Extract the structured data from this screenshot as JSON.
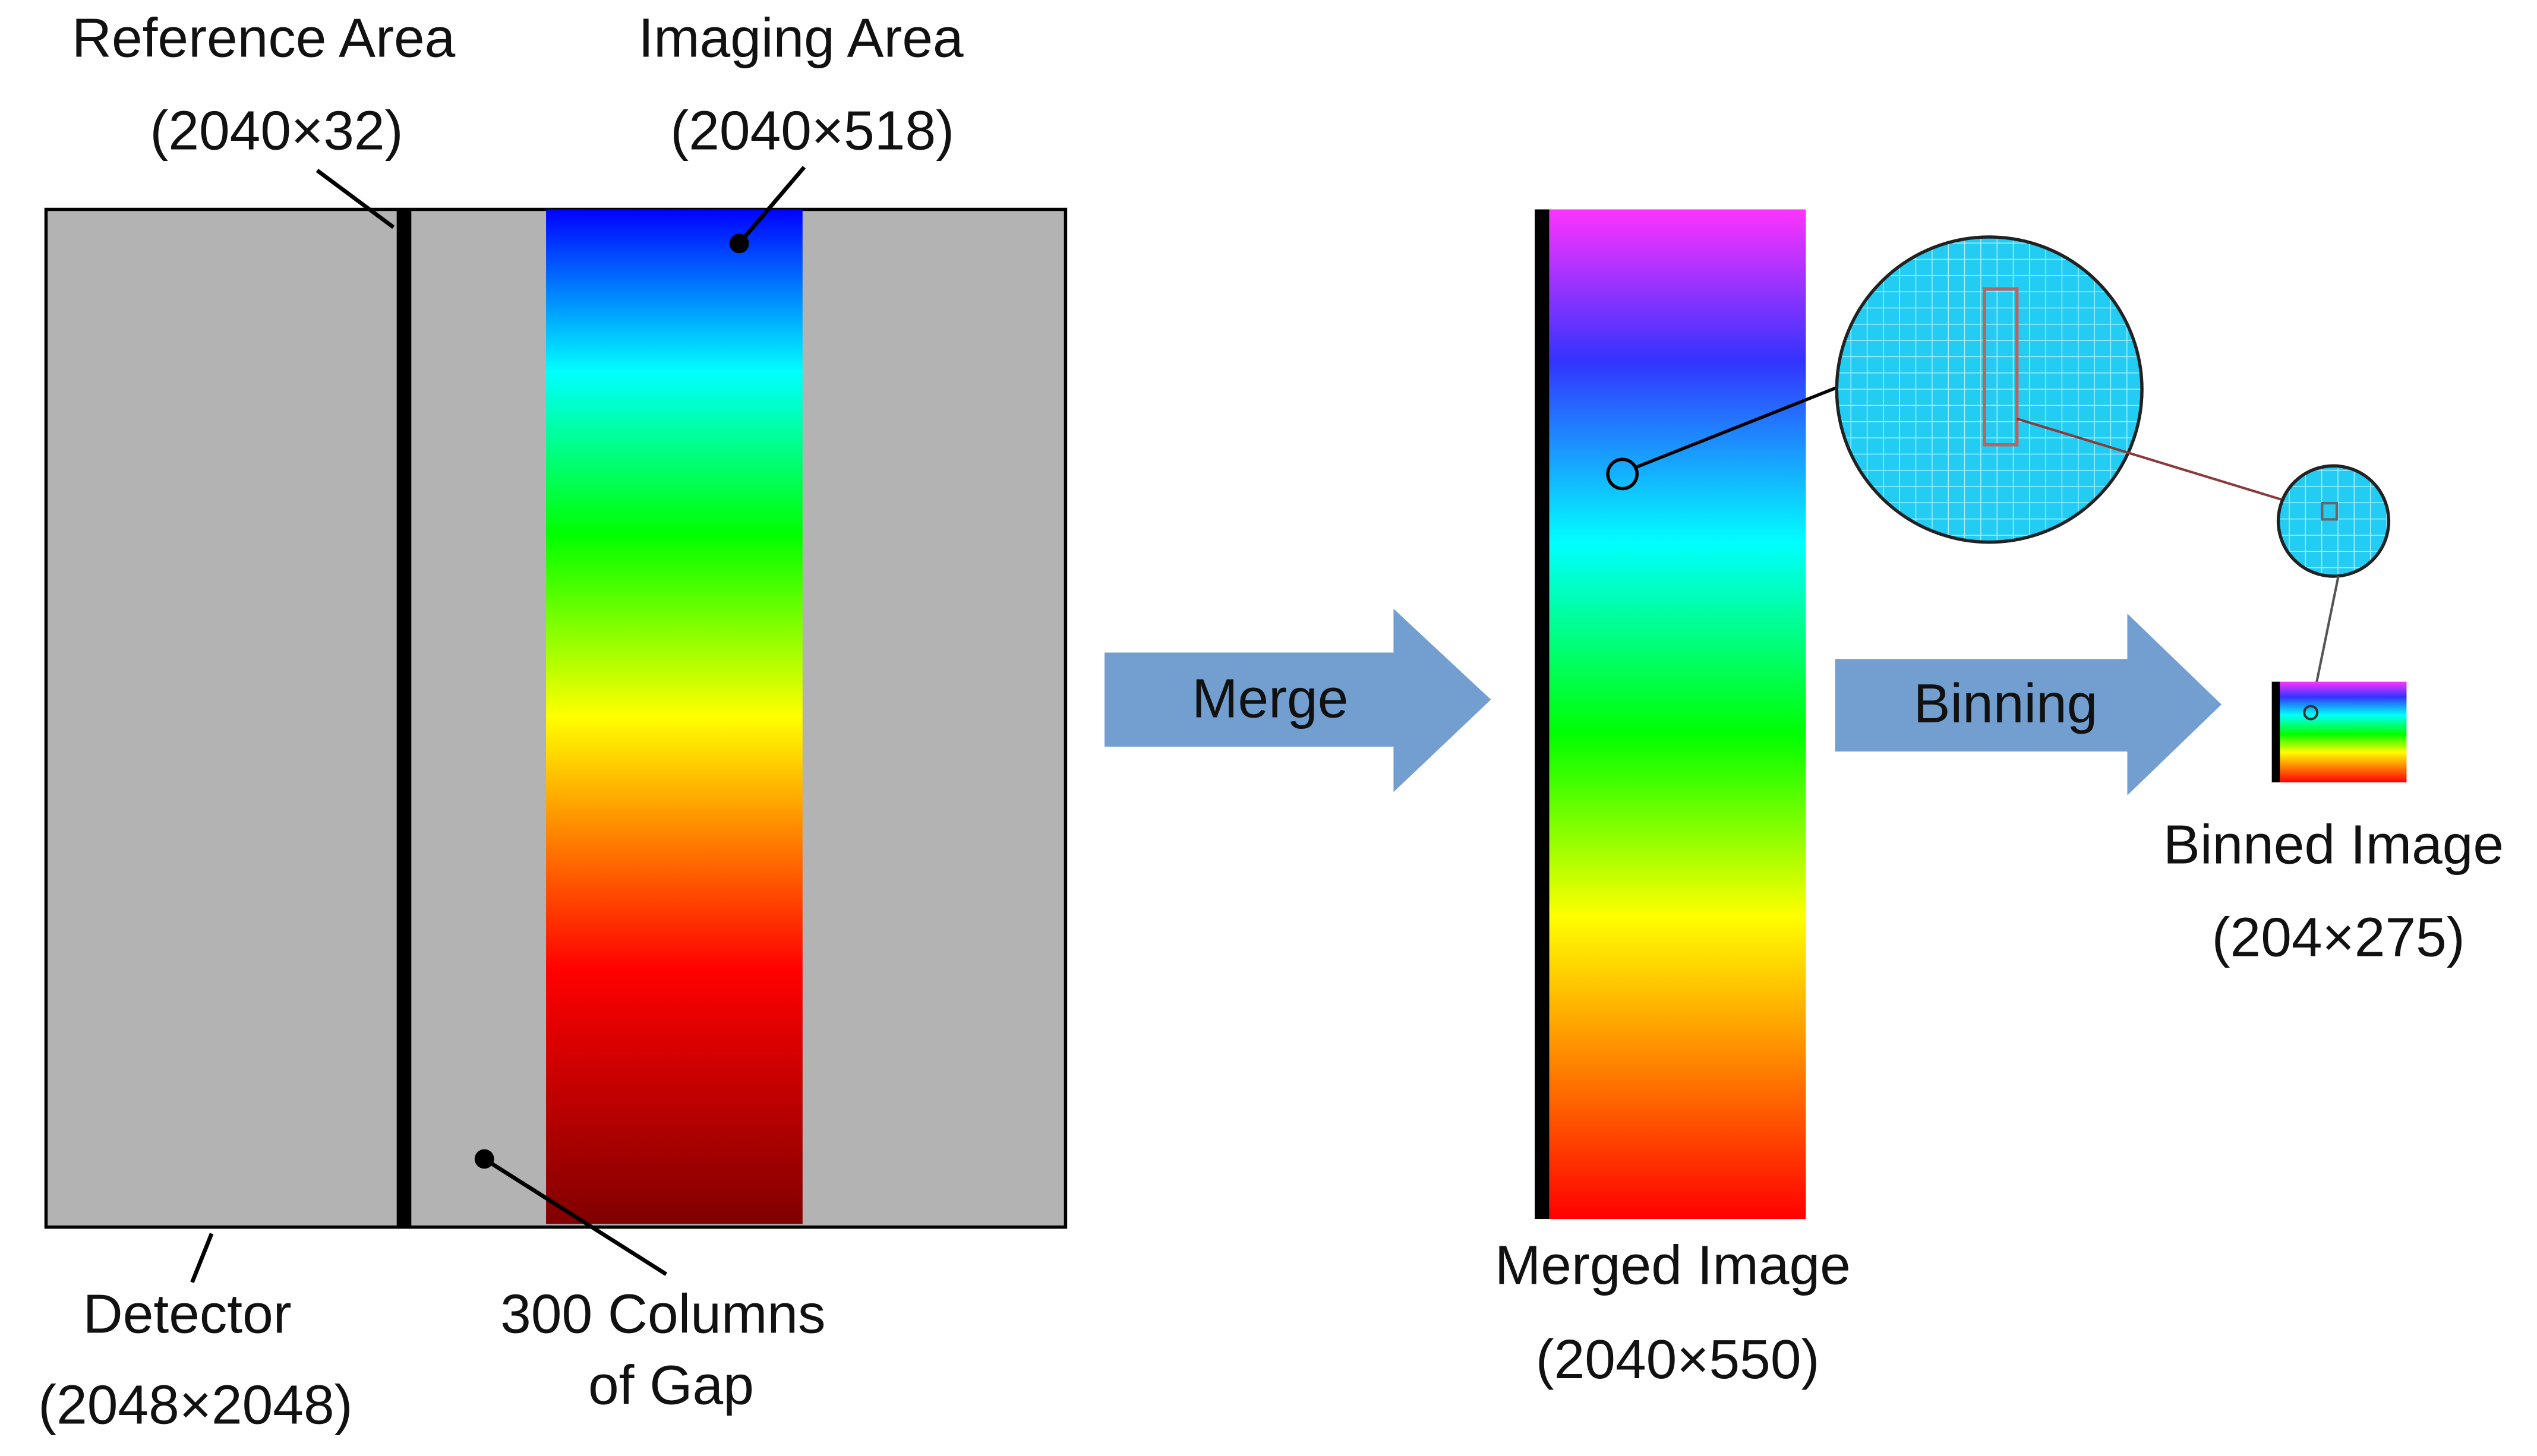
{
  "reference_area": {
    "title": "Reference Area",
    "size": "(2040×32)"
  },
  "imaging_area": {
    "title": "Imaging Area",
    "size": "(2040×518)"
  },
  "detector": {
    "title": "Detector",
    "size": "(2048×2048)"
  },
  "gap": {
    "line1": "300 Columns",
    "line2": "of Gap"
  },
  "merge_step": "Merge",
  "binning_step": "Binning",
  "merged_image": {
    "title": "Merged Image",
    "size": "(2040×550)"
  },
  "binned_image": {
    "title": "Binned Image",
    "size": "(204×275)"
  }
}
